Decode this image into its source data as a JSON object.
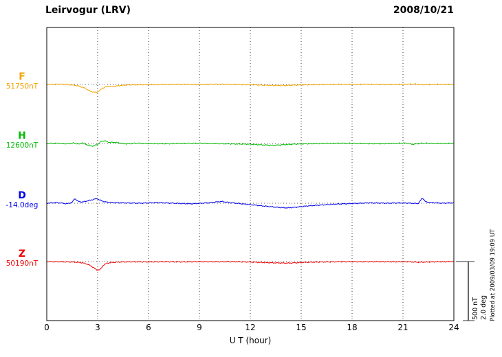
{
  "header": {
    "station": "Leirvogur (LRV)",
    "date": "2008/10/21"
  },
  "xaxis": {
    "label": "U T (hour)"
  },
  "scale_bar": {
    "labels": [
      "500 nT",
      "2.0 deg"
    ]
  },
  "plotted_note": "Plotted at 2009/03/09 19:09 UT",
  "chart_data": {
    "type": "line",
    "title": "Leirvogur (LRV)",
    "subtitle": "2008/10/21",
    "xlabel": "U T (hour)",
    "x_range": [
      0,
      24
    ],
    "x_ticks": [
      0,
      3,
      6,
      9,
      12,
      15,
      18,
      21,
      24
    ],
    "grid": "dotted vertical lines every 3 hours; dotted horizontal baseline per trace",
    "scale_reference": {
      "nT": 500,
      "deg": 2.0
    },
    "points_are": "[hour, offset from baseline_value in units]",
    "series": [
      {
        "name": "F",
        "baseline_label": "51750nT",
        "baseline_value": 51750,
        "units": "nT",
        "color": "#f2a200",
        "points": [
          [
            0,
            0
          ],
          [
            0.7,
            2
          ],
          [
            1.3,
            -2
          ],
          [
            1.7,
            -8
          ],
          [
            2.0,
            -18
          ],
          [
            2.3,
            -35
          ],
          [
            2.6,
            -60
          ],
          [
            2.9,
            -68
          ],
          [
            3.1,
            -55
          ],
          [
            3.3,
            -30
          ],
          [
            3.6,
            -15
          ],
          [
            3.9,
            -18
          ],
          [
            4.2,
            -12
          ],
          [
            4.6,
            -6
          ],
          [
            5.0,
            -3
          ],
          [
            6,
            -2
          ],
          [
            7,
            0
          ],
          [
            8,
            1
          ],
          [
            9,
            -1
          ],
          [
            10,
            2
          ],
          [
            11,
            0
          ],
          [
            12,
            -2
          ],
          [
            12.8,
            -6
          ],
          [
            13.5,
            -9
          ],
          [
            14.2,
            -8
          ],
          [
            15,
            -4
          ],
          [
            16,
            -1
          ],
          [
            17,
            1
          ],
          [
            18,
            0
          ],
          [
            19,
            1
          ],
          [
            20,
            -1
          ],
          [
            21,
            1
          ],
          [
            21.7,
            4
          ],
          [
            22.2,
            -2
          ],
          [
            23,
            1
          ],
          [
            24,
            0
          ]
        ]
      },
      {
        "name": "H",
        "baseline_label": "12600nT",
        "baseline_value": 12600,
        "units": "nT",
        "color": "#00bb00",
        "points": [
          [
            0,
            0
          ],
          [
            0.6,
            2
          ],
          [
            1.2,
            -3
          ],
          [
            1.6,
            4
          ],
          [
            1.9,
            -6
          ],
          [
            2.1,
            6
          ],
          [
            2.4,
            -12
          ],
          [
            2.7,
            -22
          ],
          [
            3.0,
            -8
          ],
          [
            3.2,
            18
          ],
          [
            3.45,
            22
          ],
          [
            3.7,
            8
          ],
          [
            4.0,
            10
          ],
          [
            4.3,
            4
          ],
          [
            4.7,
            -4
          ],
          [
            5.2,
            2
          ],
          [
            6,
            0
          ],
          [
            7,
            -2
          ],
          [
            8,
            1
          ],
          [
            9,
            2
          ],
          [
            10,
            -1
          ],
          [
            11,
            -4
          ],
          [
            12,
            -6
          ],
          [
            12.7,
            -12
          ],
          [
            13.4,
            -16
          ],
          [
            14,
            -10
          ],
          [
            14.7,
            -5
          ],
          [
            15.5,
            -2
          ],
          [
            16.5,
            1
          ],
          [
            17.5,
            2
          ],
          [
            18.5,
            0
          ],
          [
            19.5,
            -2
          ],
          [
            20.5,
            1
          ],
          [
            21.2,
            4
          ],
          [
            21.6,
            -7
          ],
          [
            22.1,
            3
          ],
          [
            23,
            0
          ],
          [
            24,
            1
          ]
        ]
      },
      {
        "name": "D",
        "baseline_label": "-14.0deg",
        "baseline_value": -14.0,
        "units": "deg",
        "color": "#0000ee",
        "points": [
          [
            0,
            0
          ],
          [
            0.6,
            0.02
          ],
          [
            1.2,
            -0.02
          ],
          [
            1.5,
            0.03
          ],
          [
            1.65,
            0.16
          ],
          [
            1.85,
            0.06
          ],
          [
            2.1,
            0.04
          ],
          [
            2.4,
            0.08
          ],
          [
            2.7,
            0.12
          ],
          [
            2.95,
            0.16
          ],
          [
            3.15,
            0.1
          ],
          [
            3.4,
            0.05
          ],
          [
            3.8,
            0.02
          ],
          [
            4.5,
            0.01
          ],
          [
            5.5,
            0
          ],
          [
            6.5,
            0.02
          ],
          [
            7.5,
            0
          ],
          [
            8.5,
            -0.02
          ],
          [
            9.5,
            0.01
          ],
          [
            10.3,
            0.06
          ],
          [
            10.8,
            0.02
          ],
          [
            11.5,
            -0.02
          ],
          [
            12.2,
            -0.06
          ],
          [
            12.9,
            -0.1
          ],
          [
            13.6,
            -0.14
          ],
          [
            14.2,
            -0.16
          ],
          [
            14.8,
            -0.13
          ],
          [
            15.4,
            -0.09
          ],
          [
            16.2,
            -0.06
          ],
          [
            17,
            -0.03
          ],
          [
            18,
            -0.01
          ],
          [
            19,
            0.01
          ],
          [
            20,
            0
          ],
          [
            21,
            0.01
          ],
          [
            21.9,
            -0.01
          ],
          [
            22.15,
            0.18
          ],
          [
            22.35,
            0.04
          ],
          [
            22.7,
            0.02
          ],
          [
            23.3,
            0
          ],
          [
            24,
            0.01
          ]
        ]
      },
      {
        "name": "Z",
        "baseline_label": "50190nT",
        "baseline_value": 50190,
        "units": "nT",
        "color": "#ee0000",
        "points": [
          [
            0,
            0
          ],
          [
            0.7,
            -2
          ],
          [
            1.4,
            -3
          ],
          [
            1.8,
            -6
          ],
          [
            2.1,
            -10
          ],
          [
            2.4,
            -22
          ],
          [
            2.7,
            -45
          ],
          [
            2.95,
            -72
          ],
          [
            3.15,
            -68
          ],
          [
            3.35,
            -28
          ],
          [
            3.6,
            -12
          ],
          [
            3.9,
            -7
          ],
          [
            4.3,
            -4
          ],
          [
            5,
            -2
          ],
          [
            6,
            -3
          ],
          [
            7,
            -1
          ],
          [
            8,
            -3
          ],
          [
            9,
            -1
          ],
          [
            10,
            -2
          ],
          [
            11,
            -1
          ],
          [
            12,
            -4
          ],
          [
            12.8,
            -8
          ],
          [
            13.5,
            -11
          ],
          [
            14.2,
            -13
          ],
          [
            14.9,
            -9
          ],
          [
            15.6,
            -5
          ],
          [
            16.5,
            -3
          ],
          [
            17.5,
            -1
          ],
          [
            18.5,
            -2
          ],
          [
            19.5,
            -1
          ],
          [
            20.5,
            -2
          ],
          [
            21.3,
            -1
          ],
          [
            21.9,
            -6
          ],
          [
            22.3,
            -4
          ],
          [
            23,
            -2
          ],
          [
            24,
            0
          ]
        ]
      }
    ]
  }
}
